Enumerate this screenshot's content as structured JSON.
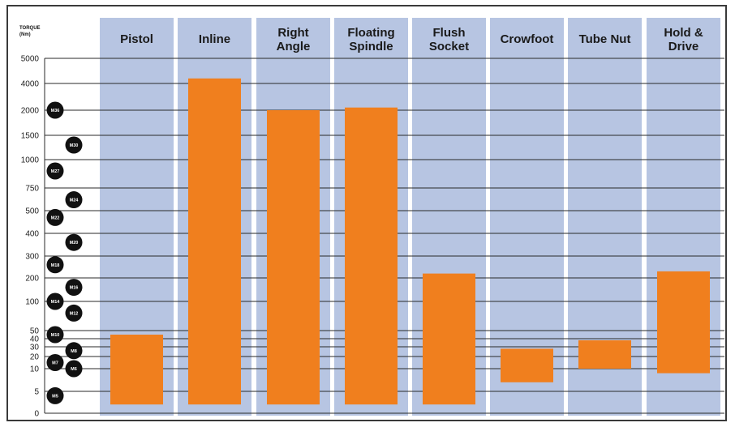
{
  "chart_data": {
    "type": "bar",
    "title": "",
    "ylabel_lines": [
      "TORQUE",
      "(Nm)"
    ],
    "y_ticks": [
      "0",
      "5",
      "10",
      "20",
      "30",
      "40",
      "50",
      "100",
      "200",
      "300",
      "400",
      "500",
      "750",
      "1000",
      "1500",
      "2000",
      "4000",
      "5000"
    ],
    "grid": true,
    "categories": [
      {
        "label": [
          "Pistol"
        ]
      },
      {
        "label": [
          "Inline"
        ]
      },
      {
        "label": [
          "Right",
          "Angle"
        ]
      },
      {
        "label": [
          "Floating",
          "Spindle"
        ]
      },
      {
        "label": [
          "Flush",
          "Socket"
        ]
      },
      {
        "label": [
          "Crowfoot"
        ]
      },
      {
        "label": [
          "Tube Nut"
        ]
      },
      {
        "label": [
          "Hold &",
          "Drive"
        ]
      }
    ],
    "ranges": [
      {
        "category": "Pistol",
        "min": 2,
        "max": 45
      },
      {
        "category": "Inline",
        "min": 2,
        "max": 4200
      },
      {
        "category": "Right Angle",
        "min": 2,
        "max": 2000
      },
      {
        "category": "Floating Spindle",
        "min": 2,
        "max": 2200
      },
      {
        "category": "Flush Socket",
        "min": 2,
        "max": 220
      },
      {
        "category": "Crowfoot",
        "min": 7,
        "max": 28
      },
      {
        "category": "Tube Nut",
        "min": 10,
        "max": 38
      },
      {
        "category": "Hold & Drive",
        "min": 9,
        "max": 230
      }
    ],
    "bolt_markers": [
      {
        "label": "M36",
        "col": 0,
        "value": 2000
      },
      {
        "label": "M30",
        "col": 1,
        "value": 1300
      },
      {
        "label": "M27",
        "col": 0,
        "value": 900
      },
      {
        "label": "M24",
        "col": 1,
        "value": 620
      },
      {
        "label": "M22",
        "col": 0,
        "value": 470
      },
      {
        "label": "M20",
        "col": 1,
        "value": 360
      },
      {
        "label": "M18",
        "col": 0,
        "value": 260
      },
      {
        "label": "M16",
        "col": 1,
        "value": 160
      },
      {
        "label": "M14",
        "col": 0,
        "value": 100
      },
      {
        "label": "M12",
        "col": 1,
        "value": 80
      },
      {
        "label": "M10",
        "col": 0,
        "value": 45
      },
      {
        "label": "M8",
        "col": 1,
        "value": 26
      },
      {
        "label": "M7",
        "col": 0,
        "value": 15
      },
      {
        "label": "M6",
        "col": 1,
        "value": 10
      },
      {
        "label": "M5",
        "col": 0,
        "value": 4
      }
    ],
    "colors": {
      "bar": "#f07f1e",
      "column": "#b7c5e2",
      "grid": "#2a2a2a",
      "marker": "#111111"
    }
  }
}
